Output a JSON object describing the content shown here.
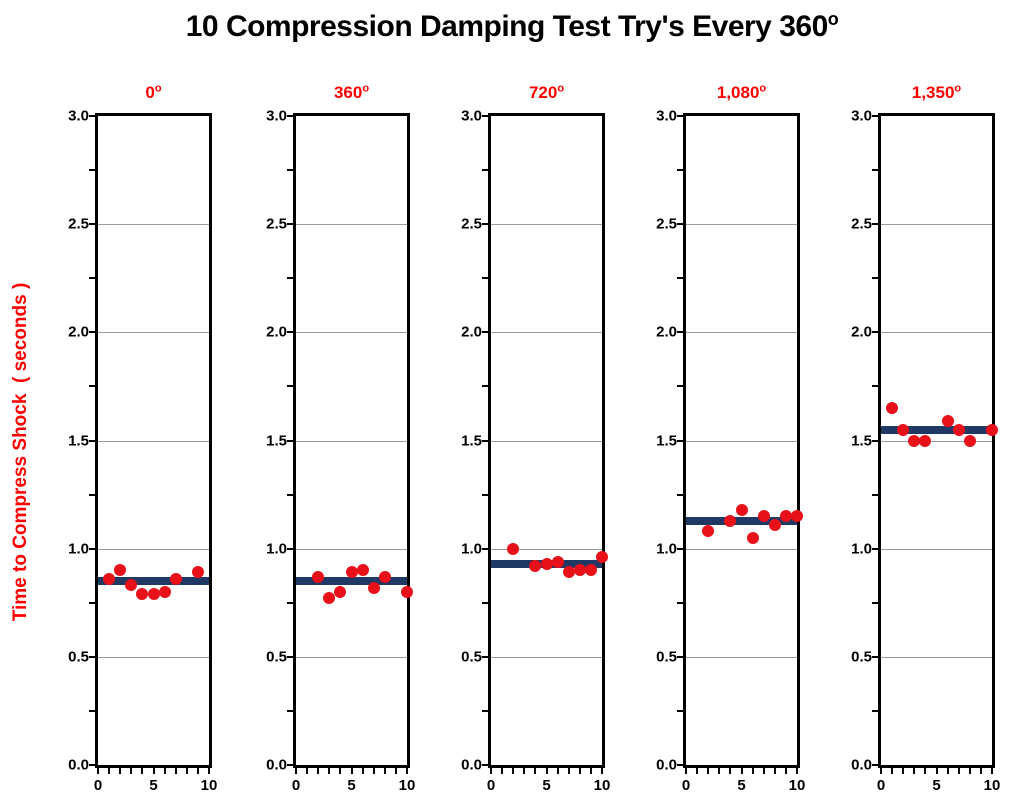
{
  "title": {
    "text": "10 Compression Damping Test Try's Every 360",
    "sup": "o"
  },
  "colors": {
    "point": "#e8111a",
    "mean_line": "#1f3864",
    "red_text": "#ff0000",
    "grid": "#9b9b9b",
    "border": "#000000"
  },
  "chart_data": {
    "type": "scatter",
    "title": "10 Compression Damping Test Try's Every 360",
    "title_superscript": "o",
    "ylabel": "Time to Compress Shock  ( seconds )",
    "xlabel": "",
    "ylim": [
      0.0,
      3.0
    ],
    "xlim": [
      0,
      10
    ],
    "y_major_tick_labels": [
      "3.0",
      "2.5",
      "2.0",
      "1.5",
      "1.0",
      "0.5",
      "0.0"
    ],
    "y_major_step": 0.5,
    "y_minor_step": 0.25,
    "x_tick_labels": [
      {
        "value": 0,
        "label": "0"
      },
      {
        "value": 5,
        "label": "5"
      },
      {
        "value": 10,
        "label": "10"
      }
    ],
    "x_minor_step": 1,
    "grid": "horizontal-major-only",
    "legend": "none",
    "panels": [
      {
        "label": "0",
        "sup": "o",
        "mean": 0.85,
        "points": [
          [
            1,
            0.86
          ],
          [
            2,
            0.9
          ],
          [
            3,
            0.83
          ],
          [
            4,
            0.79
          ],
          [
            5,
            0.79
          ],
          [
            6,
            0.8
          ],
          [
            7,
            0.86
          ],
          [
            9,
            0.89
          ]
        ]
      },
      {
        "label": "360",
        "sup": "o",
        "mean": 0.85,
        "points": [
          [
            2,
            0.87
          ],
          [
            3,
            0.77
          ],
          [
            4,
            0.8
          ],
          [
            5,
            0.89
          ],
          [
            6,
            0.9
          ],
          [
            7,
            0.82
          ],
          [
            8,
            0.87
          ],
          [
            10,
            0.8
          ]
        ]
      },
      {
        "label": "720",
        "sup": "o",
        "mean": 0.93,
        "points": [
          [
            2,
            1.0
          ],
          [
            4,
            0.92
          ],
          [
            5,
            0.93
          ],
          [
            6,
            0.94
          ],
          [
            7,
            0.89
          ],
          [
            8,
            0.9
          ],
          [
            9,
            0.9
          ],
          [
            10,
            0.96
          ]
        ]
      },
      {
        "label": "1,080",
        "sup": "o",
        "mean": 1.13,
        "points": [
          [
            2,
            1.08
          ],
          [
            4,
            1.13
          ],
          [
            5,
            1.18
          ],
          [
            6,
            1.05
          ],
          [
            7,
            1.15
          ],
          [
            8,
            1.11
          ],
          [
            9,
            1.15
          ],
          [
            10,
            1.15
          ]
        ]
      },
      {
        "label": "1,350",
        "sup": "o",
        "mean": 1.55,
        "points": [
          [
            1,
            1.65
          ],
          [
            2,
            1.55
          ],
          [
            3,
            1.5
          ],
          [
            4,
            1.5
          ],
          [
            6,
            1.59
          ],
          [
            7,
            1.55
          ],
          [
            8,
            1.5
          ],
          [
            10,
            1.55
          ]
        ]
      }
    ]
  }
}
